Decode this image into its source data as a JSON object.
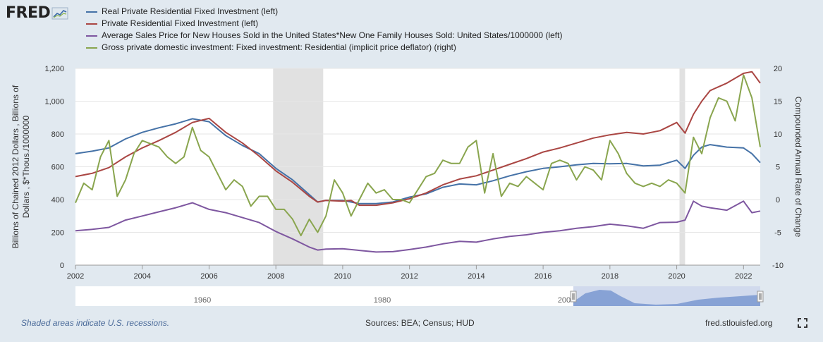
{
  "header": {
    "logo_text": "FRED",
    "logo_icon": "chart-line-icon"
  },
  "colors": {
    "background": "#e1e9f0",
    "plot_background": "#ffffff",
    "recession_shade": "#e1e1e1",
    "navigator_fill": "#6e8fcc"
  },
  "footer": {
    "recession_note": "Shaded areas indicate U.S. recessions.",
    "sources": "Sources: BEA; Census; HUD",
    "site": "fred.stlouisfed.org",
    "fullscreen_icon": "fullscreen-icon"
  },
  "navigator": {
    "labels": [
      "1960",
      "1980",
      "200"
    ]
  },
  "chart_data": {
    "type": "line",
    "x_label": "",
    "x_ticks": [
      "2002",
      "2004",
      "2006",
      "2008",
      "2010",
      "2012",
      "2014",
      "2016",
      "2018",
      "2020",
      "2022"
    ],
    "y_left": {
      "label": "Billions of Chained 2012 Dollars , Billions of Dollars , $*Thous./1000000",
      "range": [
        0,
        1200
      ],
      "ticks": [
        "0",
        "200",
        "400",
        "600",
        "800",
        "1,000",
        "1,200"
      ]
    },
    "y_right": {
      "label": "Compounded Annual Rate of Change",
      "range": [
        -10,
        20
      ],
      "ticks": [
        "-10",
        "-5",
        "0",
        "5",
        "10",
        "15",
        "20"
      ]
    },
    "x_range": [
      2002.0,
      2022.5
    ],
    "grid": true,
    "legend_position": "top",
    "recessions": [
      [
        2007.917,
        2009.417
      ],
      [
        2020.083,
        2020.25
      ]
    ],
    "series": [
      {
        "name": "Real Private Residential Fixed Investment (left)",
        "color": "#4572a7",
        "axis": "left",
        "points": [
          [
            2002.0,
            680
          ],
          [
            2002.5,
            695
          ],
          [
            2003.0,
            715
          ],
          [
            2003.5,
            770
          ],
          [
            2004.0,
            810
          ],
          [
            2004.5,
            838
          ],
          [
            2005.0,
            862
          ],
          [
            2005.5,
            893
          ],
          [
            2006.0,
            875
          ],
          [
            2006.5,
            790
          ],
          [
            2007.0,
            730
          ],
          [
            2007.5,
            680
          ],
          [
            2008.0,
            590
          ],
          [
            2008.5,
            520
          ],
          [
            2009.0,
            430
          ],
          [
            2009.25,
            385
          ],
          [
            2009.5,
            395
          ],
          [
            2010.0,
            395
          ],
          [
            2010.25,
            385
          ],
          [
            2010.5,
            375
          ],
          [
            2011.0,
            375
          ],
          [
            2011.5,
            385
          ],
          [
            2012.0,
            415
          ],
          [
            2012.5,
            435
          ],
          [
            2013.0,
            475
          ],
          [
            2013.5,
            495
          ],
          [
            2014.0,
            490
          ],
          [
            2014.5,
            515
          ],
          [
            2015.0,
            545
          ],
          [
            2015.5,
            570
          ],
          [
            2016.0,
            590
          ],
          [
            2016.5,
            600
          ],
          [
            2017.0,
            612
          ],
          [
            2017.5,
            620
          ],
          [
            2018.0,
            618
          ],
          [
            2018.5,
            620
          ],
          [
            2019.0,
            605
          ],
          [
            2019.5,
            610
          ],
          [
            2020.0,
            640
          ],
          [
            2020.25,
            590
          ],
          [
            2020.5,
            670
          ],
          [
            2020.75,
            720
          ],
          [
            2021.0,
            735
          ],
          [
            2021.5,
            720
          ],
          [
            2022.0,
            715
          ],
          [
            2022.25,
            680
          ],
          [
            2022.5,
            625
          ]
        ]
      },
      {
        "name": "Private Residential Fixed Investment (left)",
        "color": "#aa4643",
        "axis": "left",
        "points": [
          [
            2002.0,
            540
          ],
          [
            2002.5,
            560
          ],
          [
            2003.0,
            595
          ],
          [
            2003.5,
            660
          ],
          [
            2004.0,
            715
          ],
          [
            2004.5,
            760
          ],
          [
            2005.0,
            810
          ],
          [
            2005.5,
            870
          ],
          [
            2006.0,
            895
          ],
          [
            2006.5,
            810
          ],
          [
            2007.0,
            745
          ],
          [
            2007.5,
            665
          ],
          [
            2008.0,
            575
          ],
          [
            2008.5,
            505
          ],
          [
            2009.0,
            420
          ],
          [
            2009.25,
            385
          ],
          [
            2009.5,
            395
          ],
          [
            2010.0,
            390
          ],
          [
            2010.25,
            395
          ],
          [
            2010.5,
            365
          ],
          [
            2011.0,
            365
          ],
          [
            2011.5,
            380
          ],
          [
            2012.0,
            405
          ],
          [
            2012.5,
            440
          ],
          [
            2013.0,
            490
          ],
          [
            2013.5,
            525
          ],
          [
            2014.0,
            545
          ],
          [
            2014.5,
            580
          ],
          [
            2015.0,
            615
          ],
          [
            2015.5,
            650
          ],
          [
            2016.0,
            690
          ],
          [
            2016.5,
            715
          ],
          [
            2017.0,
            745
          ],
          [
            2017.5,
            775
          ],
          [
            2018.0,
            795
          ],
          [
            2018.5,
            810
          ],
          [
            2019.0,
            800
          ],
          [
            2019.5,
            820
          ],
          [
            2020.0,
            870
          ],
          [
            2020.25,
            805
          ],
          [
            2020.5,
            920
          ],
          [
            2020.75,
            1000
          ],
          [
            2021.0,
            1065
          ],
          [
            2021.5,
            1110
          ],
          [
            2022.0,
            1170
          ],
          [
            2022.25,
            1180
          ],
          [
            2022.5,
            1110
          ]
        ]
      },
      {
        "name": "Average Sales Price for New Houses Sold in the United States*New One Family Houses Sold: United States/1000000 (left)",
        "color": "#7e57a0",
        "axis": "left",
        "points": [
          [
            2002.0,
            210
          ],
          [
            2002.5,
            218
          ],
          [
            2003.0,
            230
          ],
          [
            2003.5,
            275
          ],
          [
            2004.0,
            300
          ],
          [
            2004.5,
            325
          ],
          [
            2005.0,
            350
          ],
          [
            2005.5,
            380
          ],
          [
            2006.0,
            340
          ],
          [
            2006.5,
            320
          ],
          [
            2007.0,
            290
          ],
          [
            2007.5,
            260
          ],
          [
            2008.0,
            205
          ],
          [
            2008.5,
            160
          ],
          [
            2009.0,
            110
          ],
          [
            2009.25,
            92
          ],
          [
            2009.5,
            98
          ],
          [
            2010.0,
            100
          ],
          [
            2010.5,
            90
          ],
          [
            2011.0,
            80
          ],
          [
            2011.5,
            82
          ],
          [
            2012.0,
            95
          ],
          [
            2012.5,
            110
          ],
          [
            2013.0,
            130
          ],
          [
            2013.5,
            145
          ],
          [
            2014.0,
            140
          ],
          [
            2014.5,
            160
          ],
          [
            2015.0,
            175
          ],
          [
            2015.5,
            185
          ],
          [
            2016.0,
            200
          ],
          [
            2016.5,
            210
          ],
          [
            2017.0,
            225
          ],
          [
            2017.5,
            235
          ],
          [
            2018.0,
            250
          ],
          [
            2018.5,
            240
          ],
          [
            2019.0,
            225
          ],
          [
            2019.5,
            260
          ],
          [
            2020.0,
            262
          ],
          [
            2020.25,
            275
          ],
          [
            2020.5,
            390
          ],
          [
            2020.75,
            360
          ],
          [
            2021.0,
            350
          ],
          [
            2021.5,
            335
          ],
          [
            2022.0,
            390
          ],
          [
            2022.25,
            320
          ],
          [
            2022.5,
            330
          ]
        ]
      },
      {
        "name": "Gross private domestic investment: Fixed investment: Residential (implicit price deflator) (right)",
        "color": "#89a54e",
        "axis": "right",
        "points": [
          [
            2002.0,
            -0.5
          ],
          [
            2002.25,
            2.5
          ],
          [
            2002.5,
            1.5
          ],
          [
            2002.75,
            6.5
          ],
          [
            2003.0,
            9
          ],
          [
            2003.25,
            0.5
          ],
          [
            2003.5,
            3
          ],
          [
            2003.75,
            7
          ],
          [
            2004.0,
            9
          ],
          [
            2004.25,
            8.5
          ],
          [
            2004.5,
            8
          ],
          [
            2004.75,
            6.5
          ],
          [
            2005.0,
            5.5
          ],
          [
            2005.25,
            6.5
          ],
          [
            2005.5,
            11
          ],
          [
            2005.75,
            7.5
          ],
          [
            2006.0,
            6.5
          ],
          [
            2006.25,
            4
          ],
          [
            2006.5,
            1.5
          ],
          [
            2006.75,
            3
          ],
          [
            2007.0,
            2
          ],
          [
            2007.25,
            -1
          ],
          [
            2007.5,
            0.5
          ],
          [
            2007.75,
            0.5
          ],
          [
            2008.0,
            -1.5
          ],
          [
            2008.25,
            -1.5
          ],
          [
            2008.5,
            -3
          ],
          [
            2008.75,
            -5.5
          ],
          [
            2009.0,
            -3
          ],
          [
            2009.25,
            -5
          ],
          [
            2009.5,
            -2.5
          ],
          [
            2009.75,
            3
          ],
          [
            2010.0,
            1
          ],
          [
            2010.25,
            -2.5
          ],
          [
            2010.5,
            0
          ],
          [
            2010.75,
            2.5
          ],
          [
            2011.0,
            1
          ],
          [
            2011.25,
            1.5
          ],
          [
            2011.5,
            0
          ],
          [
            2011.75,
            0
          ],
          [
            2012.0,
            -0.5
          ],
          [
            2012.25,
            1.5
          ],
          [
            2012.5,
            3.5
          ],
          [
            2012.75,
            4
          ],
          [
            2013.0,
            6
          ],
          [
            2013.25,
            5.5
          ],
          [
            2013.5,
            5.5
          ],
          [
            2013.75,
            8
          ],
          [
            2014.0,
            9
          ],
          [
            2014.25,
            1
          ],
          [
            2014.5,
            7
          ],
          [
            2014.75,
            0.5
          ],
          [
            2015.0,
            2.5
          ],
          [
            2015.25,
            2
          ],
          [
            2015.5,
            3.5
          ],
          [
            2015.75,
            2.5
          ],
          [
            2016.0,
            1.5
          ],
          [
            2016.25,
            5.5
          ],
          [
            2016.5,
            6
          ],
          [
            2016.75,
            5.5
          ],
          [
            2017.0,
            3
          ],
          [
            2017.25,
            5
          ],
          [
            2017.5,
            4.5
          ],
          [
            2017.75,
            3
          ],
          [
            2018.0,
            9
          ],
          [
            2018.25,
            7
          ],
          [
            2018.5,
            4
          ],
          [
            2018.75,
            2.5
          ],
          [
            2019.0,
            2
          ],
          [
            2019.25,
            2.5
          ],
          [
            2019.5,
            2
          ],
          [
            2019.75,
            3
          ],
          [
            2020.0,
            2.5
          ],
          [
            2020.25,
            1
          ],
          [
            2020.5,
            9.5
          ],
          [
            2020.75,
            7
          ],
          [
            2021.0,
            12.5
          ],
          [
            2021.25,
            15.5
          ],
          [
            2021.5,
            15
          ],
          [
            2021.75,
            12
          ],
          [
            2022.0,
            19
          ],
          [
            2022.25,
            15.5
          ],
          [
            2022.5,
            8
          ]
        ]
      }
    ]
  }
}
